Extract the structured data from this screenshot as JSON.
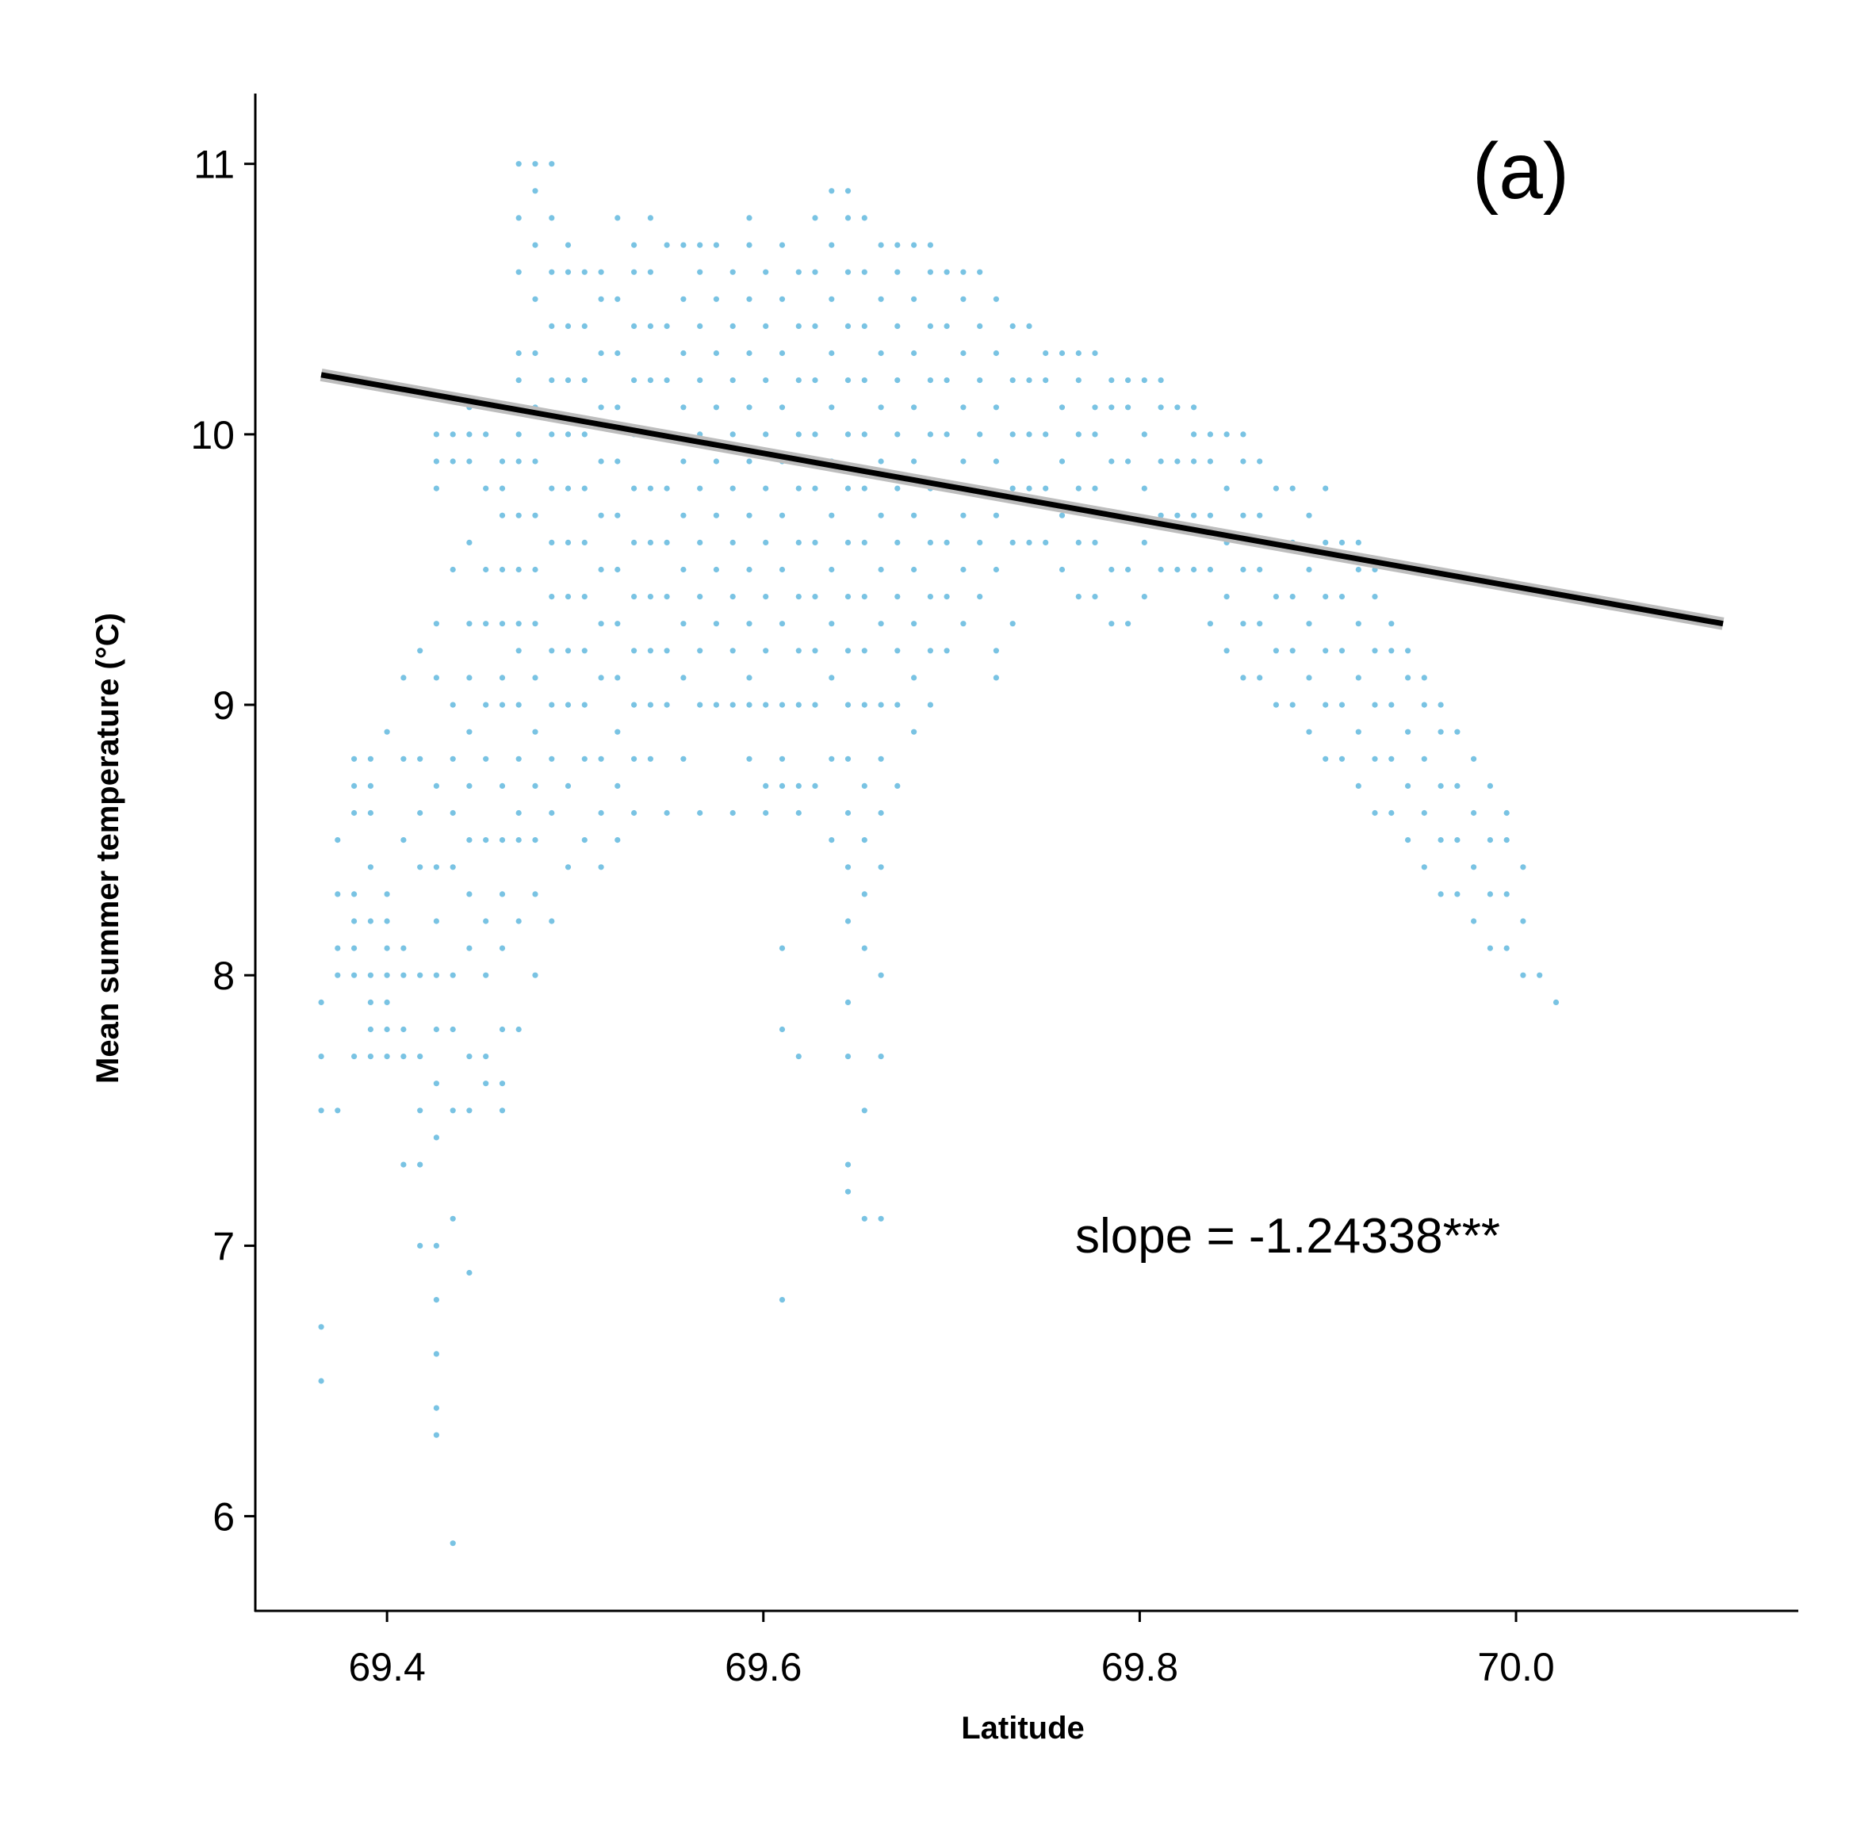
{
  "chart_data": {
    "type": "scatter",
    "title": "",
    "panel_label": "(a)",
    "xlabel": "Latitude",
    "ylabel": "Mean summer temperature (°C)",
    "xlim": [
      69.33,
      70.15
    ],
    "ylim": [
      5.65,
      11.26
    ],
    "x_ticks": [
      69.4,
      69.6,
      69.8,
      70.0
    ],
    "x_tick_labels": [
      "69.4",
      "69.6",
      "69.8",
      "70.0"
    ],
    "y_ticks": [
      6,
      7,
      8,
      9,
      10,
      11
    ],
    "y_tick_labels": [
      "6",
      "7",
      "8",
      "9",
      "10",
      "11"
    ],
    "grid": false,
    "legend": "none",
    "point_color": "#79C3E3",
    "line_color": "#000000",
    "ribbon_color": "#BDBDBD",
    "annotation": "slope = -1.24338***",
    "regression": {
      "slope": -1.24338,
      "x": [
        69.365,
        70.11
      ],
      "y": [
        10.22,
        9.3
      ]
    },
    "points_grid": {
      "x_step": 0.00875,
      "x_start": 69.365,
      "y_step": 0.1,
      "columns": [
        [
          7.5,
          7.7,
          7.9,
          6.5,
          6.7
        ],
        [
          7.5,
          8.0,
          8.1,
          8.3,
          8.5
        ],
        [
          7.7,
          8.0,
          8.1,
          8.2,
          8.3,
          8.6,
          8.7,
          8.8
        ],
        [
          7.7,
          7.8,
          7.9,
          8.0,
          8.2,
          8.4,
          8.6,
          8.7,
          8.8
        ],
        [
          7.7,
          7.8,
          7.9,
          8.0,
          8.1,
          8.2,
          8.3,
          8.9
        ],
        [
          7.3,
          7.7,
          7.8,
          8.0,
          8.1,
          8.5,
          8.8,
          9.1
        ],
        [
          7.0,
          7.3,
          7.5,
          7.7,
          8.0,
          8.4,
          8.6,
          8.8,
          9.2
        ],
        [
          6.3,
          6.4,
          6.6,
          6.8,
          7.0,
          7.4,
          7.6,
          7.8,
          8.0,
          8.2,
          8.4,
          8.7,
          9.1,
          9.3,
          9.8,
          9.9,
          10.0
        ],
        [
          5.9,
          7.1,
          7.5,
          7.8,
          8.0,
          8.4,
          8.6,
          8.8,
          9.0,
          9.5,
          9.9,
          10.0
        ],
        [
          6.9,
          7.5,
          7.7,
          8.1,
          8.3,
          8.5,
          8.7,
          8.9,
          9.1,
          9.3,
          9.6,
          9.9,
          10.0,
          10.1
        ],
        [
          7.6,
          7.7,
          8.0,
          8.2,
          8.5,
          8.8,
          9.0,
          9.3,
          9.5,
          9.8,
          10.0
        ],
        [
          7.5,
          7.6,
          7.8,
          8.1,
          8.3,
          8.5,
          8.7,
          9.0,
          9.1,
          9.3,
          9.5,
          9.7,
          9.8,
          9.9
        ],
        [
          7.8,
          8.2,
          8.5,
          8.6,
          8.8,
          9.0,
          9.2,
          9.3,
          9.5,
          9.7,
          9.9,
          10.0,
          10.2,
          10.3,
          10.6,
          10.8,
          11.0
        ],
        [
          8.0,
          8.3,
          8.5,
          8.7,
          8.9,
          9.1,
          9.3,
          9.5,
          9.7,
          9.9,
          10.1,
          10.3,
          10.5,
          10.7,
          10.9,
          11.0
        ],
        [
          8.2,
          8.6,
          8.8,
          9.0,
          9.2,
          9.4,
          9.6,
          9.8,
          10.0,
          10.2,
          10.4,
          10.6,
          10.8,
          11.0
        ],
        [
          8.4,
          8.7,
          9.0,
          9.2,
          9.4,
          9.6,
          9.8,
          10.0,
          10.2,
          10.4,
          10.6,
          10.7
        ],
        [
          8.5,
          8.8,
          9.0,
          9.2,
          9.4,
          9.6,
          9.8,
          10.0,
          10.2,
          10.4,
          10.6
        ],
        [
          8.4,
          8.6,
          8.8,
          9.1,
          9.3,
          9.5,
          9.7,
          9.9,
          10.1,
          10.3,
          10.5,
          10.6
        ],
        [
          8.5,
          8.7,
          8.9,
          9.1,
          9.3,
          9.5,
          9.7,
          9.9,
          10.1,
          10.3,
          10.5,
          10.8
        ],
        [
          8.6,
          8.8,
          9.0,
          9.2,
          9.4,
          9.6,
          9.8,
          10.0,
          10.2,
          10.4,
          10.6,
          10.7
        ],
        [
          8.8,
          9.0,
          9.2,
          9.4,
          9.6,
          9.8,
          10.0,
          10.2,
          10.4,
          10.6,
          10.8
        ],
        [
          8.6,
          9.0,
          9.2,
          9.4,
          9.6,
          9.8,
          10.0,
          10.2,
          10.4,
          10.7
        ],
        [
          8.8,
          9.1,
          9.3,
          9.5,
          9.7,
          9.9,
          10.1,
          10.3,
          10.5,
          10.7
        ],
        [
          8.6,
          9.0,
          9.2,
          9.4,
          9.6,
          9.8,
          10.0,
          10.2,
          10.4,
          10.6,
          10.7
        ],
        [
          9.0,
          9.3,
          9.5,
          9.7,
          9.9,
          10.1,
          10.3,
          10.5,
          10.7
        ],
        [
          8.6,
          9.0,
          9.2,
          9.4,
          9.6,
          9.8,
          10.0,
          10.2,
          10.4,
          10.6
        ],
        [
          8.8,
          9.0,
          9.1,
          9.3,
          9.5,
          9.7,
          9.9,
          10.1,
          10.3,
          10.5,
          10.7,
          10.8
        ],
        [
          8.6,
          8.7,
          9.0,
          9.2,
          9.4,
          9.6,
          9.8,
          10.0,
          10.2,
          10.4,
          10.6
        ],
        [
          6.8,
          7.8,
          8.1,
          8.7,
          8.8,
          9.0,
          9.3,
          9.5,
          9.7,
          9.9,
          10.1,
          10.3,
          10.5,
          10.7
        ],
        [
          7.7,
          8.6,
          8.7,
          9.0,
          9.2,
          9.4,
          9.6,
          9.8,
          10.0,
          10.2,
          10.4,
          10.6
        ],
        [
          8.7,
          9.0,
          9.2,
          9.4,
          9.6,
          9.8,
          10.0,
          10.2,
          10.4,
          10.6,
          10.8
        ],
        [
          8.5,
          8.8,
          9.1,
          9.3,
          9.5,
          9.7,
          9.9,
          10.1,
          10.3,
          10.5,
          10.7,
          10.9
        ],
        [
          7.2,
          7.3,
          7.7,
          7.9,
          8.2,
          8.4,
          8.6,
          8.8,
          9.0,
          9.2,
          9.4,
          9.6,
          9.8,
          10.0,
          10.2,
          10.4,
          10.6,
          10.8,
          10.9
        ],
        [
          7.1,
          7.5,
          8.1,
          8.3,
          8.5,
          8.7,
          9.0,
          9.2,
          9.4,
          9.6,
          9.8,
          10.0,
          10.2,
          10.4,
          10.6,
          10.8
        ],
        [
          7.1,
          7.7,
          8.0,
          8.4,
          8.6,
          8.8,
          9.0,
          9.3,
          9.5,
          9.7,
          9.9,
          10.1,
          10.3,
          10.5,
          10.7
        ],
        [
          8.7,
          9.0,
          9.2,
          9.4,
          9.6,
          9.8,
          10.0,
          10.2,
          10.4,
          10.6,
          10.7
        ],
        [
          8.9,
          9.1,
          9.3,
          9.5,
          9.7,
          9.9,
          10.1,
          10.3,
          10.5,
          10.7
        ],
        [
          9.0,
          9.2,
          9.4,
          9.6,
          9.8,
          10.0,
          10.2,
          10.4,
          10.6,
          10.7
        ],
        [
          9.2,
          9.4,
          9.6,
          9.8,
          10.0,
          10.2,
          10.4,
          10.6
        ],
        [
          9.3,
          9.5,
          9.7,
          9.9,
          10.1,
          10.3,
          10.5,
          10.6
        ],
        [
          9.4,
          9.6,
          9.8,
          10.0,
          10.2,
          10.4,
          10.6
        ],
        [
          9.1,
          9.2,
          9.5,
          9.7,
          9.9,
          10.1,
          10.3,
          10.5
        ],
        [
          9.3,
          9.6,
          9.8,
          10.0,
          10.2,
          10.4
        ],
        [
          9.6,
          9.8,
          10.0,
          10.2,
          10.4
        ],
        [
          9.6,
          9.8,
          10.0,
          10.2,
          10.3
        ],
        [
          9.5,
          9.7,
          9.9,
          10.1,
          10.3
        ],
        [
          9.4,
          9.6,
          9.8,
          10.0,
          10.2,
          10.3
        ],
        [
          9.4,
          9.6,
          9.8,
          10.0,
          10.1,
          10.3
        ],
        [
          9.3,
          9.5,
          9.7,
          9.9,
          10.1,
          10.2
        ],
        [
          9.3,
          9.5,
          9.7,
          9.9,
          10.1,
          10.2
        ],
        [
          9.4,
          9.6,
          9.8,
          10.0,
          10.2
        ],
        [
          9.5,
          9.7,
          9.9,
          10.1,
          10.2
        ],
        [
          9.5,
          9.7,
          9.9,
          10.1
        ],
        [
          9.5,
          9.7,
          9.9,
          10.0,
          10.1
        ],
        [
          9.3,
          9.5,
          9.7,
          9.9,
          10.0
        ],
        [
          9.2,
          9.4,
          9.6,
          9.8,
          10.0
        ],
        [
          9.1,
          9.3,
          9.5,
          9.7,
          9.9,
          10.0
        ],
        [
          9.1,
          9.3,
          9.5,
          9.7,
          9.9
        ],
        [
          9.0,
          9.2,
          9.4,
          9.6,
          9.8
        ],
        [
          9.0,
          9.2,
          9.4,
          9.6,
          9.8
        ],
        [
          8.9,
          9.1,
          9.3,
          9.5,
          9.7
        ],
        [
          8.8,
          9.0,
          9.2,
          9.4,
          9.6,
          9.8
        ],
        [
          8.8,
          9.0,
          9.2,
          9.4,
          9.6
        ],
        [
          8.7,
          8.9,
          9.1,
          9.3,
          9.5,
          9.6
        ],
        [
          8.6,
          8.8,
          9.0,
          9.2,
          9.4,
          9.5
        ],
        [
          8.6,
          8.8,
          9.0,
          9.2,
          9.3
        ],
        [
          8.5,
          8.7,
          8.9,
          9.1,
          9.2
        ],
        [
          8.4,
          8.6,
          8.8,
          9.0,
          9.1
        ],
        [
          8.3,
          8.5,
          8.7,
          8.9,
          9.0
        ],
        [
          8.3,
          8.5,
          8.7,
          8.9
        ],
        [
          8.2,
          8.4,
          8.6,
          8.8
        ],
        [
          8.1,
          8.3,
          8.5,
          8.7
        ],
        [
          8.1,
          8.3,
          8.5,
          8.6
        ],
        [
          8.0,
          8.2,
          8.4
        ],
        [
          8.0
        ],
        [
          7.9
        ]
      ]
    }
  }
}
